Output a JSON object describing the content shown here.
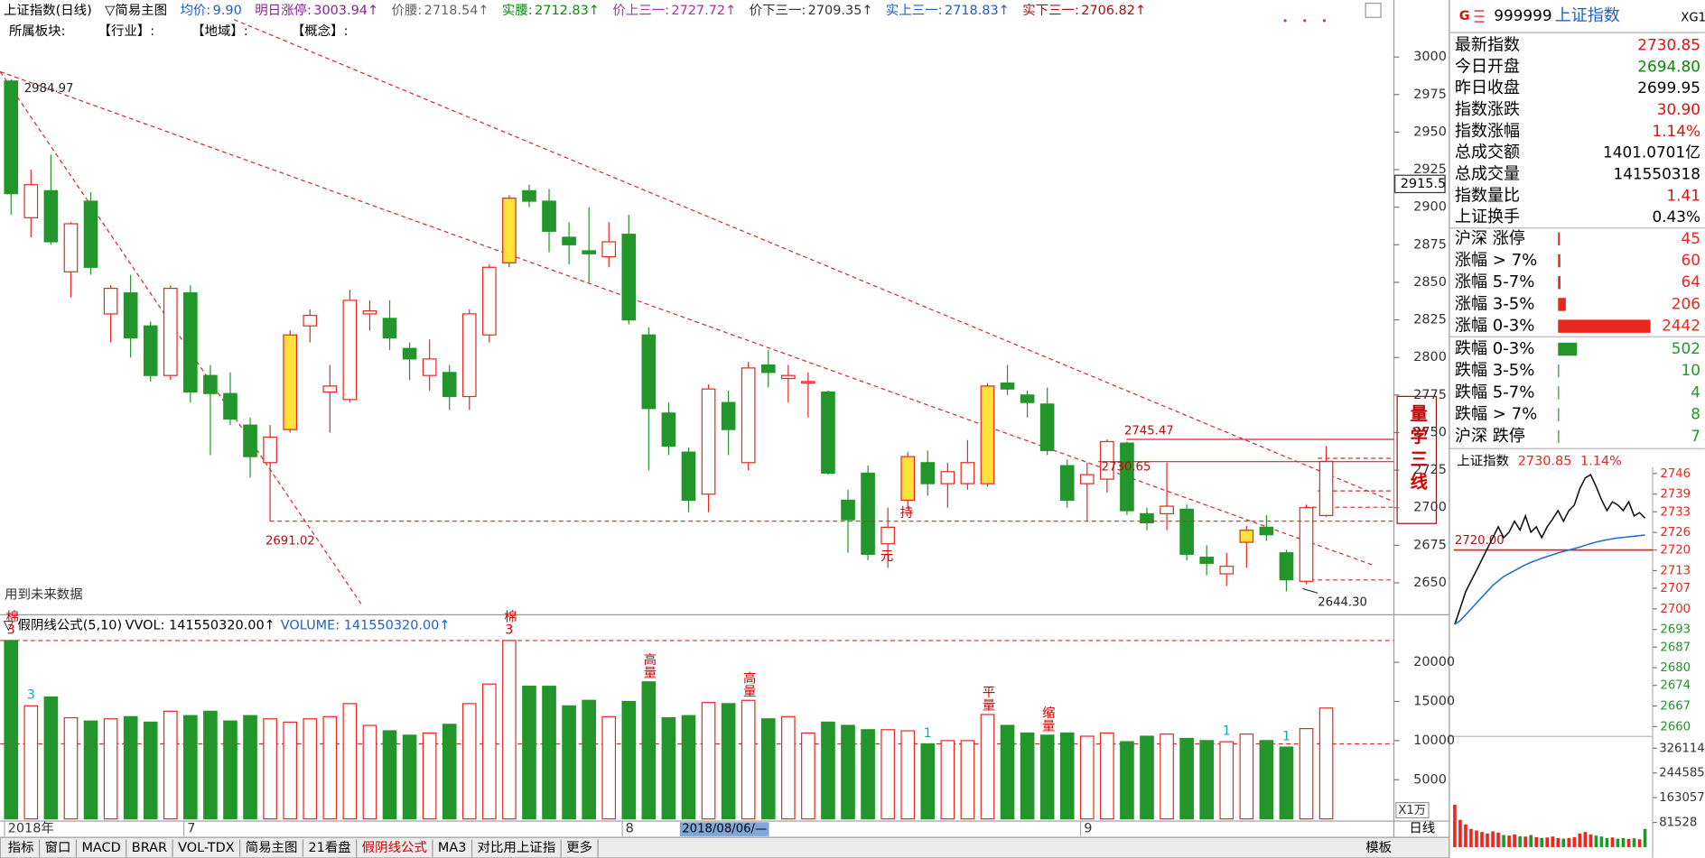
{
  "header": {
    "title": "上证指数(日线)",
    "indicator": "▽简易主图",
    "items": [
      {
        "label": "均价:",
        "value": "9.90",
        "color": "#1f5fc8"
      },
      {
        "label": "明日涨停:",
        "value": "3003.94↑",
        "color": "#8b1fa0"
      },
      {
        "label": "价腰:",
        "value": "2718.54↑",
        "color": "#666666"
      },
      {
        "label": "实腰:",
        "value": "2712.83↑",
        "color": "#0a8a0a"
      },
      {
        "label": "价上三一:",
        "value": "2727.72↑",
        "color": "#b0309a"
      },
      {
        "label": "价下三一:",
        "value": "2709.35↑",
        "color": "#333333"
      },
      {
        "label": "实上三一:",
        "value": "2718.83↑",
        "color": "#1f5fc8"
      },
      {
        "label": "实下三一:",
        "value": "2706.82↑",
        "color": "#a01010"
      }
    ],
    "sector": [
      "所属板块:",
      "【行业】:",
      "【地域】:",
      "【概念】:"
    ]
  },
  "main_note": "用到未来数据",
  "signal_box": "量学三线",
  "volume_header": {
    "formula": "▽ 假阴线公式(5,10)",
    "vvol": "VVOL: 141550320.00↑",
    "volume": "VOLUME: 141550320.00↑"
  },
  "cursor_label": "2018/08/06/—",
  "period": "日线",
  "toolbar": [
    {
      "text": "指标",
      "active": false
    },
    {
      "text": "窗口",
      "active": false
    },
    {
      "text": "MACD",
      "active": false
    },
    {
      "text": "BRAR",
      "active": false
    },
    {
      "text": "VOL-TDX",
      "active": false
    },
    {
      "text": "简易主图",
      "active": false
    },
    {
      "text": "21看盘",
      "active": false
    },
    {
      "text": "假阴线公式",
      "active": true
    },
    {
      "text": "MA3",
      "active": false
    },
    {
      "text": "对比用上证指",
      "active": false
    },
    {
      "text": "更多",
      "active": false
    }
  ],
  "toolbar_right": "模板",
  "quote": {
    "mark": "G",
    "code": "999999",
    "name": "上证指数",
    "tag": "XG1",
    "rows": [
      {
        "label": "最新指数",
        "value": "2730.85",
        "color": "#e01010"
      },
      {
        "label": "今日开盘",
        "value": "2694.80",
        "color": "#0a8a0a"
      },
      {
        "label": "昨日收盘",
        "value": "2699.95",
        "color": "#000000"
      },
      {
        "label": "指数涨跌",
        "value": "30.90",
        "color": "#e01010"
      },
      {
        "label": "指数涨幅",
        "value": "1.14%",
        "color": "#e01010"
      },
      {
        "label": "总成交额",
        "value": "1401.0701亿",
        "color": "#000000"
      },
      {
        "label": "总成交量",
        "value": "141550318",
        "color": "#000000"
      },
      {
        "label": "指数量比",
        "value": "1.41",
        "color": "#e01010"
      },
      {
        "label": "上证换手",
        "value": "0.43%",
        "color": "#000000"
      }
    ]
  },
  "chart_data": [
    {
      "type": "candlestick",
      "categories": [
        "2018年",
        null,
        null,
        null,
        null,
        null,
        null,
        null,
        null,
        "7",
        null,
        null,
        null,
        null,
        null,
        null,
        null,
        null,
        null,
        null,
        null,
        null,
        null,
        null,
        null,
        null,
        null,
        null,
        null,
        null,
        null,
        "8",
        null,
        null,
        null,
        null,
        null,
        null,
        null,
        null,
        null,
        null,
        null,
        null,
        null,
        null,
        null,
        null,
        null,
        null,
        null,
        null,
        null,
        null,
        "9",
        null,
        null,
        null,
        null,
        null,
        null,
        null,
        null,
        null,
        null,
        null,
        null
      ],
      "open": [
        2984,
        2893,
        2911,
        2857,
        2904,
        2829,
        2843,
        2821,
        2788,
        2843,
        2788,
        2776,
        2755,
        2730,
        2752,
        2821,
        2777,
        2772,
        2829,
        2826,
        2806,
        2788,
        2790,
        2774,
        2815,
        2863,
        2911,
        2904,
        2880,
        2871,
        2867,
        2882,
        2815,
        2763,
        2737,
        2709,
        2770,
        2730,
        2795,
        2786,
        2783,
        2777,
        2705,
        2723,
        2676,
        2705,
        2730,
        2716,
        2716,
        2716,
        2783,
        2775,
        2769,
        2728,
        2716,
        2719,
        2743,
        2696,
        2696,
        2699,
        2667,
        2656,
        2677,
        2687,
        2670,
        2651,
        2694.8
      ],
      "high": [
        2984.97,
        2925,
        2935,
        2890,
        2910,
        2848,
        2855,
        2824,
        2848,
        2848,
        2795,
        2790,
        2760,
        2755,
        2818,
        2832,
        2795,
        2845,
        2838,
        2838,
        2810,
        2812,
        2795,
        2832,
        2862,
        2908,
        2915,
        2912,
        2890,
        2900,
        2890,
        2895,
        2820,
        2770,
        2740,
        2782,
        2778,
        2797,
        2805,
        2795,
        2790,
        2778,
        2712,
        2728,
        2700,
        2737,
        2738,
        2730,
        2745,
        2783,
        2795,
        2778,
        2780,
        2732,
        2730,
        2745.47,
        2744,
        2700,
        2730,
        2702,
        2675,
        2670,
        2688,
        2695,
        2672,
        2702,
        2741
      ],
      "low": [
        2895,
        2880,
        2875,
        2840,
        2855,
        2810,
        2800,
        2784,
        2785,
        2770,
        2735,
        2755,
        2720,
        2691.02,
        2750,
        2810,
        2750,
        2770,
        2818,
        2805,
        2785,
        2778,
        2765,
        2765,
        2810,
        2860,
        2900,
        2870,
        2862,
        2850,
        2860,
        2822,
        2725,
        2735,
        2697,
        2697,
        2735,
        2725,
        2780,
        2770,
        2760,
        2722,
        2670,
        2665,
        2660,
        2700,
        2708,
        2700,
        2712,
        2714,
        2775,
        2760,
        2735,
        2700,
        2691,
        2710,
        2695,
        2685,
        2685,
        2665,
        2655,
        2648,
        2660,
        2678,
        2644.3,
        2649,
        2694
      ],
      "close": [
        2909,
        2915,
        2877,
        2889,
        2860,
        2846,
        2813,
        2788,
        2846,
        2777,
        2776,
        2759,
        2734,
        2747,
        2815,
        2828,
        2781,
        2838,
        2831,
        2813,
        2799,
        2799,
        2774,
        2829,
        2860,
        2906,
        2904,
        2884,
        2875,
        2869,
        2877,
        2825,
        2766,
        2741,
        2705,
        2779,
        2752,
        2793,
        2790,
        2788,
        2784,
        2723,
        2692,
        2669,
        2687,
        2734,
        2716,
        2724,
        2730,
        2781,
        2779,
        2770,
        2738,
        2705,
        2722,
        2744,
        2698,
        2690,
        2701,
        2669,
        2663,
        2661,
        2685,
        2682,
        2652,
        2700,
        2730.85
      ],
      "notes": [
        null,
        null,
        null,
        null,
        null,
        null,
        null,
        null,
        null,
        null,
        null,
        null,
        null,
        null,
        null,
        null,
        null,
        null,
        null,
        null,
        null,
        null,
        null,
        null,
        null,
        null,
        null,
        null,
        null,
        null,
        null,
        null,
        null,
        null,
        null,
        null,
        null,
        null,
        null,
        null,
        null,
        null,
        null,
        null,
        "元",
        "持",
        null,
        null,
        null,
        null,
        null,
        null,
        null,
        null,
        null,
        null,
        null,
        null,
        null,
        null,
        null,
        null,
        null,
        null,
        null,
        null,
        null
      ],
      "highlight": [
        14,
        25,
        45,
        49,
        62
      ],
      "up_color": "#e8271f",
      "down_color": "#22962a",
      "highlight_color": "#ffe23a",
      "ylim": [
        2636,
        3009
      ],
      "yticks": [
        2650,
        2675,
        2700,
        2725,
        2750,
        2775,
        2800,
        2825,
        2850,
        2875,
        2900,
        2925,
        2950,
        2975,
        3000
      ],
      "levels": [
        {
          "value": 2745.47,
          "style": "solid"
        },
        {
          "value": 2730.65,
          "style": "solid"
        },
        {
          "value": 2691.02,
          "style": "dashed"
        }
      ],
      "price_labels": [
        2984.97,
        {
          "value": 2644.3,
          "label": "2644.30"
        }
      ],
      "cursor_value": 2915.5
    },
    {
      "type": "volume",
      "values": [
        22780,
        14440,
        15560,
        12920,
        12500,
        12780,
        13060,
        12360,
        13750,
        13190,
        13750,
        12500,
        13190,
        12780,
        12360,
        12780,
        13060,
        14720,
        11940,
        11250,
        10690,
        10970,
        12080,
        14720,
        17220,
        22780,
        16940,
        16940,
        14440,
        15140,
        13060,
        15000,
        17500,
        12920,
        13190,
        14860,
        14720,
        15140,
        12780,
        13060,
        10970,
        12360,
        11940,
        11390,
        11390,
        11250,
        9580,
        10000,
        10000,
        13330,
        11940,
        10970,
        10690,
        10970,
        10560,
        10970,
        9860,
        10560,
        10830,
        10280,
        10000,
        9860,
        10830,
        10000,
        9170,
        11530,
        14155.032
      ],
      "notes": [
        {
          "text": "棉3",
          "color": "#d40000"
        },
        {
          "text": "3",
          "color": "#1aa3b5"
        },
        null,
        null,
        null,
        null,
        null,
        null,
        null,
        null,
        null,
        null,
        null,
        null,
        null,
        null,
        null,
        null,
        null,
        null,
        null,
        null,
        null,
        null,
        null,
        {
          "text": "棉3",
          "color": "#d40000"
        },
        null,
        null,
        null,
        null,
        null,
        null,
        {
          "text": "高量",
          "color": "#d40000"
        },
        null,
        null,
        null,
        null,
        {
          "text": "高量",
          "color": "#d40000"
        },
        null,
        null,
        null,
        null,
        null,
        null,
        null,
        null,
        {
          "text": "1",
          "color": "#1aa3b5"
        },
        null,
        null,
        {
          "text": "平量",
          "color": "#d40000"
        },
        null,
        null,
        {
          "text": "缩量",
          "color": "#d40000"
        },
        null,
        null,
        null,
        null,
        null,
        null,
        null,
        null,
        {
          "text": "1",
          "color": "#1aa3b5"
        },
        null,
        null,
        {
          "text": "1",
          "color": "#1aa3b5"
        },
        null,
        null
      ],
      "ylim": [
        0,
        23300
      ],
      "yticks": [
        5000,
        10000,
        15000,
        20000
      ],
      "unit_label": "X1万",
      "levels": [
        22780,
        9580
      ]
    },
    {
      "type": "line",
      "title": "上证指数",
      "last": "2730.85",
      "change": "1.14%",
      "series": [
        {
          "color": "#111111",
          "values": [
            2694.7,
            2700.2,
            2705.8,
            2709.5,
            2713.1,
            2716.8,
            2720.5,
            2724.2,
            2727.9,
            2724.2,
            2726.1,
            2729.8,
            2726.8,
            2731.6,
            2726.1,
            2727.9,
            2724.2,
            2727.9,
            2730.5,
            2733.4,
            2729.8,
            2733.4,
            2735.3,
            2740.8,
            2744.5,
            2745.6,
            2741.6,
            2737.1,
            2733.4,
            2736.4,
            2735.3,
            2733.4,
            2736.4,
            2731.6,
            2732.7,
            2730.85
          ]
        },
        {
          "color": "#1f6fd0",
          "values": [
            2694.8,
            2696,
            2698,
            2700,
            2702,
            2704,
            2706,
            2708,
            2709.5,
            2711,
            2712,
            2713,
            2714,
            2715,
            2715.8,
            2716.5,
            2717.2,
            2717.8,
            2718.4,
            2719,
            2719.5,
            2720,
            2720.5,
            2721,
            2721.6,
            2722.2,
            2722.7,
            2723.1,
            2723.5,
            2723.8,
            2724.1,
            2724.3,
            2724.5,
            2724.7,
            2724.9,
            2725.1
          ]
        }
      ],
      "reference": {
        "value": 2720,
        "label": "2720.00"
      },
      "up_color": "#e8271f",
      "down_color": "#22962a",
      "ylim": [
        2660,
        2746
      ],
      "yticks": [
        2746,
        2739,
        2733,
        2726,
        2720,
        2713,
        2707,
        2700,
        2693,
        2687,
        2680,
        2674,
        2667,
        2660
      ]
    },
    {
      "type": "volume",
      "values": [
        140000,
        90000,
        75000,
        60000,
        55000,
        50000,
        45000,
        52000,
        48000,
        40000,
        38000,
        42000,
        36000,
        35000,
        40000,
        33000,
        30000,
        32000,
        35000,
        30000,
        28000,
        30000,
        33000,
        45000,
        50000,
        42000,
        38000,
        35000,
        30000,
        32000,
        28000,
        30000,
        27000,
        29000,
        26000,
        60000
      ],
      "ylim": [
        0,
        358000
      ],
      "yticks": [
        326114,
        244585,
        163057,
        81528
      ]
    },
    {
      "type": "hbar",
      "categories": [
        "沪深 涨停",
        "涨幅 > 7%",
        "涨幅 5-7%",
        "涨幅 3-5%",
        "涨幅 0-3%",
        "跌幅 0-3%",
        "跌幅 3-5%",
        "跌幅 5-7%",
        "跌幅 > 7%",
        "沪深 跌停"
      ],
      "values": [
        45,
        60,
        64,
        206,
        2442,
        502,
        10,
        4,
        8,
        7
      ],
      "colors": [
        "#e8271f",
        "#e8271f",
        "#e8271f",
        "#e8271f",
        "#e8271f",
        "#22962a",
        "#22962a",
        "#22962a",
        "#22962a",
        "#22962a"
      ],
      "xlim": [
        0,
        2442
      ]
    }
  ]
}
